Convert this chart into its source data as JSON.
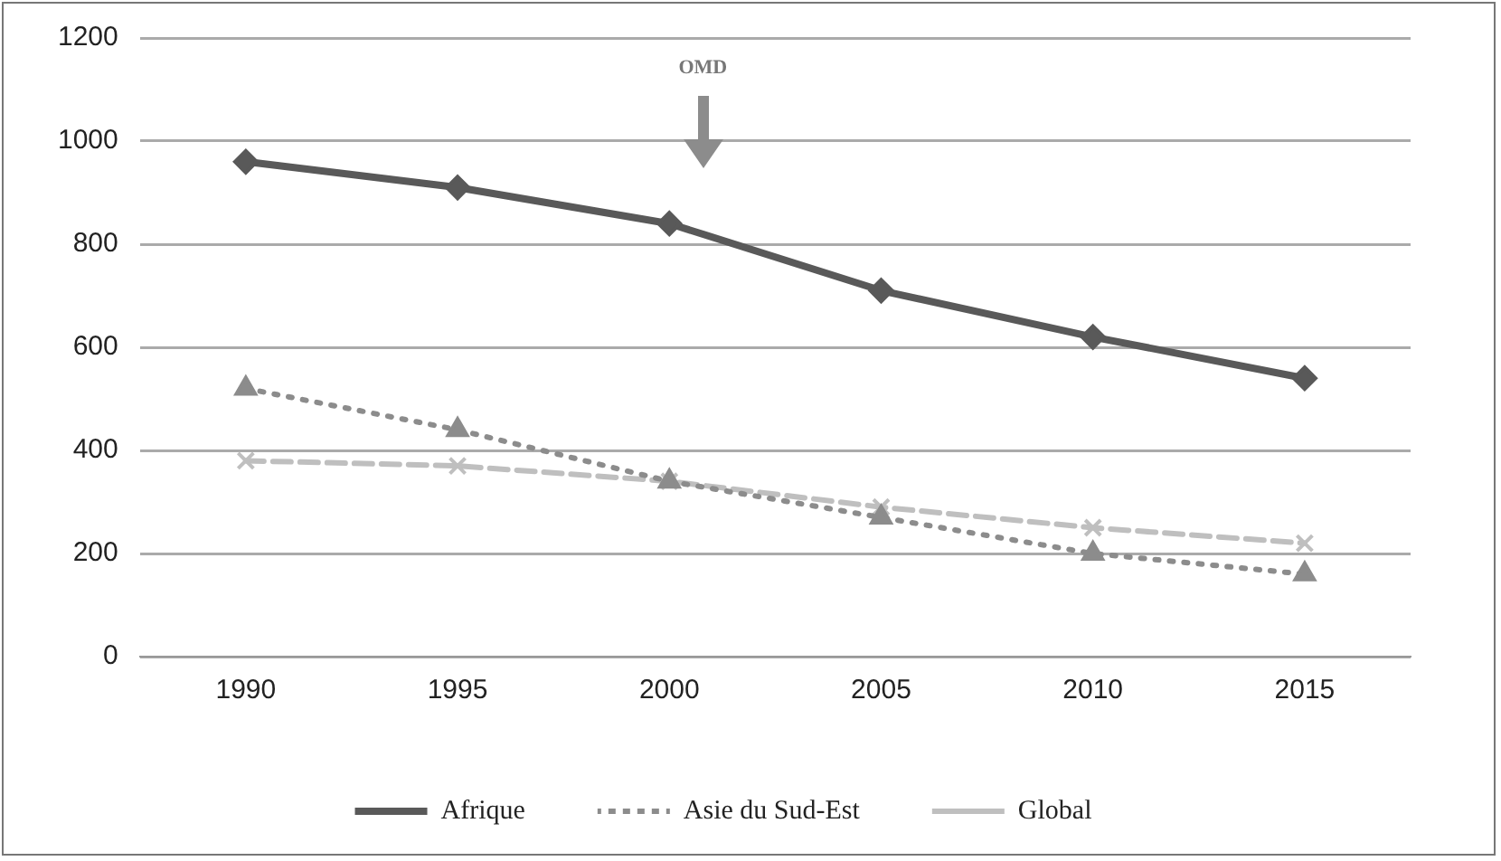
{
  "chart_data": {
    "type": "line",
    "categories": [
      "1990",
      "1995",
      "2000",
      "2005",
      "2010",
      "2015"
    ],
    "series": [
      {
        "name": "Afrique",
        "color": "#595959",
        "values": [
          960,
          910,
          840,
          710,
          620,
          540
        ],
        "marker": "diamond",
        "line_style": "solid"
      },
      {
        "name": "Asie du Sud-Est",
        "color": "#8c8c8c",
        "values": [
          520,
          440,
          340,
          270,
          200,
          160
        ],
        "marker": "triangle",
        "line_style": "dotted"
      },
      {
        "name": "Global",
        "color": "#bfbfbf",
        "values": [
          380,
          370,
          340,
          290,
          250,
          220
        ],
        "marker": "cross",
        "line_style": "dashed"
      }
    ],
    "ylim": [
      0,
      1200
    ],
    "yticks": [
      0,
      200,
      400,
      600,
      800,
      1000,
      1200
    ],
    "grid": "y",
    "legend": "bottom",
    "annotations": [
      "OMD"
    ]
  }
}
